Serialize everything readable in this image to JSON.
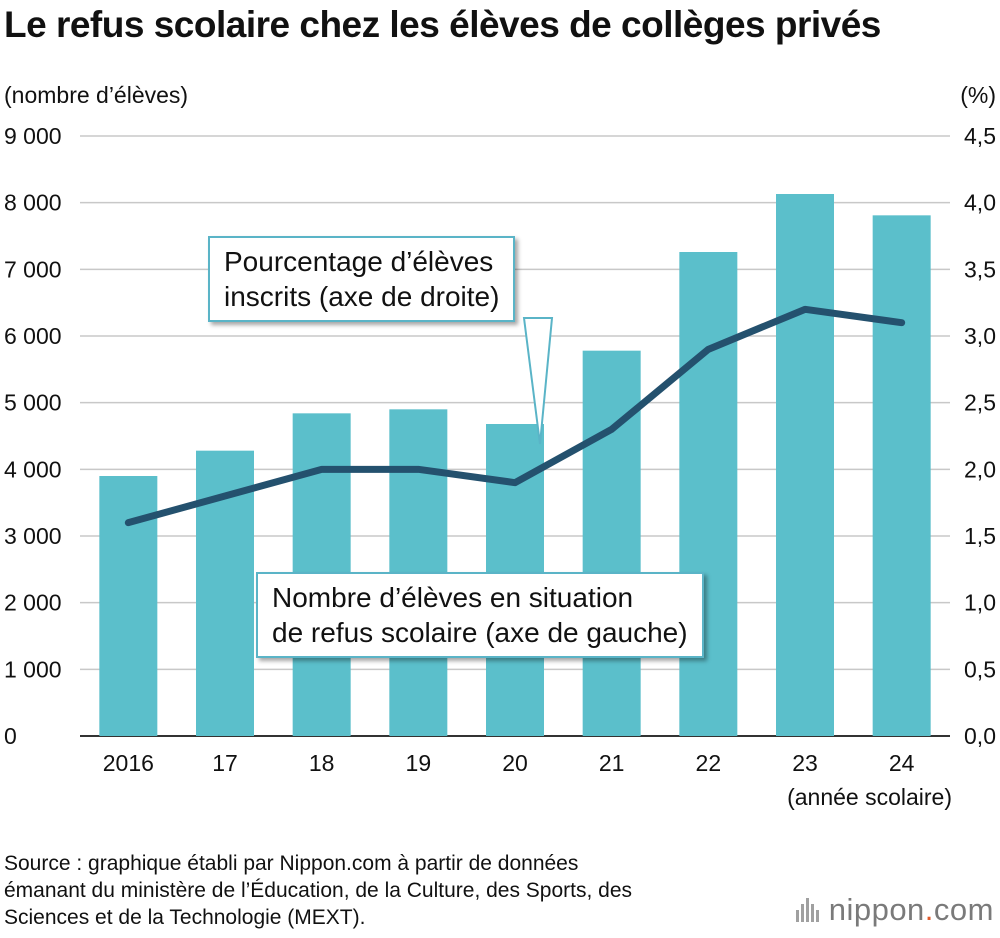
{
  "chart_data": {
    "type": "bar",
    "title": "Le refus scolaire chez les élèves de collèges privés",
    "categories": [
      "2016",
      "17",
      "18",
      "19",
      "20",
      "21",
      "22",
      "23",
      "24"
    ],
    "series": [
      {
        "name": "Nombre d’élèves en situation de refus scolaire (axe de gauche)",
        "type": "bar",
        "axis": "left",
        "values": [
          3900,
          4280,
          4840,
          4900,
          4680,
          5780,
          7260,
          8130,
          7810
        ]
      },
      {
        "name": "Pourcentage d’élèves inscrits (axe de droite)",
        "type": "line",
        "axis": "right",
        "values": [
          1.6,
          1.8,
          2.0,
          2.0,
          1.9,
          2.3,
          2.9,
          3.2,
          3.1
        ]
      }
    ],
    "ylabel_left": "(nombre d’élèves)",
    "ylabel_right": "(%)",
    "xlabel": "(année scolaire)",
    "ylim_left": [
      0,
      9000
    ],
    "ylim_right": [
      0,
      4.5
    ],
    "yticks_left": [
      "0",
      "1 000",
      "2 000",
      "3 000",
      "4 000",
      "5 000",
      "6 000",
      "7 000",
      "8 000",
      "9 000"
    ],
    "yticks_right": [
      "0,0",
      "0,5",
      "1,0",
      "1,5",
      "2,0",
      "2,5",
      "3,0",
      "3,5",
      "4,0",
      "4,5"
    ],
    "grid": true,
    "colors": {
      "bar": "#5bbfcb",
      "line": "#24516e",
      "grid": "#c8c8c8",
      "callout_border": "#5ab4c7"
    }
  },
  "callouts": {
    "line_label": [
      "Pourcentage d’élèves",
      "inscrits (axe de droite)"
    ],
    "bar_label": [
      "Nombre d’élèves en situation",
      "de refus scolaire (axe de gauche)"
    ]
  },
  "source": [
    "Source : graphique établi par Nippon.com à partir de données",
    "émanant du ministère de l’Éducation, de la Culture, des Sports, des",
    "Sciences et de la Technologie (MEXT)."
  ],
  "logo": {
    "name": "nippon",
    "dot": ".",
    "tld": "com"
  }
}
